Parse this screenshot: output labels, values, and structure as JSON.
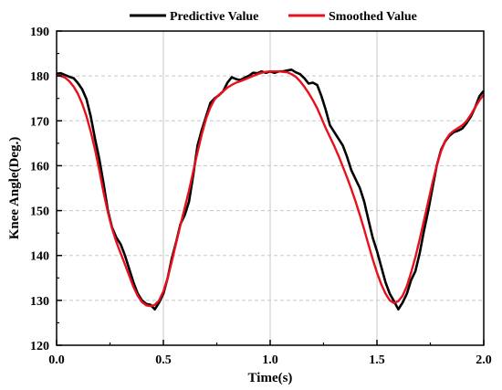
{
  "chart_data": {
    "type": "line",
    "title": "",
    "xlabel": "Time(s)",
    "ylabel": "Knee Angle(Deg.)",
    "xlim": [
      0,
      2.0
    ],
    "ylim": [
      120,
      190
    ],
    "xticks": [
      "0.0",
      "0.5",
      "1.0",
      "1.5",
      "2.0"
    ],
    "yticks": [
      "120",
      "130",
      "140",
      "150",
      "160",
      "170",
      "180",
      "190"
    ],
    "grid": true,
    "legend_position": "top",
    "series": [
      {
        "name": "Predictive Value",
        "color": "#000000",
        "x": [
          0.0,
          0.02,
          0.04,
          0.06,
          0.08,
          0.1,
          0.12,
          0.14,
          0.16,
          0.18,
          0.2,
          0.22,
          0.24,
          0.26,
          0.28,
          0.3,
          0.32,
          0.34,
          0.36,
          0.38,
          0.4,
          0.42,
          0.44,
          0.46,
          0.48,
          0.5,
          0.52,
          0.54,
          0.56,
          0.58,
          0.6,
          0.62,
          0.64,
          0.66,
          0.68,
          0.7,
          0.72,
          0.74,
          0.76,
          0.78,
          0.8,
          0.82,
          0.84,
          0.86,
          0.88,
          0.9,
          0.92,
          0.94,
          0.96,
          0.98,
          1.0,
          1.02,
          1.04,
          1.06,
          1.08,
          1.1,
          1.12,
          1.14,
          1.16,
          1.18,
          1.2,
          1.22,
          1.24,
          1.26,
          1.28,
          1.3,
          1.32,
          1.34,
          1.36,
          1.38,
          1.4,
          1.42,
          1.44,
          1.46,
          1.48,
          1.5,
          1.52,
          1.54,
          1.56,
          1.58,
          1.6,
          1.62,
          1.64,
          1.66,
          1.68,
          1.7,
          1.72,
          1.74,
          1.76,
          1.78,
          1.8,
          1.82,
          1.84,
          1.86,
          1.88,
          1.9,
          1.92,
          1.94,
          1.96,
          1.98,
          2.0
        ],
        "values": [
          180.5,
          180.6,
          180.2,
          179.8,
          179.5,
          178.4,
          177.0,
          174.8,
          171.0,
          166.0,
          161.5,
          156.0,
          150.0,
          146.2,
          144.0,
          142.5,
          140.0,
          137.0,
          134.0,
          131.5,
          130.0,
          129.2,
          129.0,
          128.0,
          129.5,
          131.5,
          135.0,
          139.5,
          143.0,
          147.0,
          149.0,
          152.0,
          158.0,
          164.5,
          168.0,
          171.0,
          174.0,
          175.0,
          175.7,
          176.6,
          178.5,
          179.7,
          179.3,
          179.1,
          179.6,
          180.0,
          180.7,
          180.6,
          181.0,
          180.7,
          181.0,
          180.7,
          181.0,
          181.0,
          181.2,
          181.4,
          180.8,
          180.4,
          179.5,
          178.3,
          178.5,
          178.0,
          175.5,
          172.5,
          169.0,
          167.5,
          166.0,
          164.5,
          162.0,
          159.0,
          157.0,
          155.0,
          152.0,
          148.0,
          144.0,
          141.0,
          137.5,
          134.0,
          131.5,
          129.8,
          128.0,
          129.5,
          131.5,
          134.5,
          136.5,
          140.5,
          145.5,
          150.0,
          155.0,
          160.0,
          163.5,
          165.5,
          166.7,
          167.5,
          167.8,
          168.3,
          169.5,
          171.0,
          173.0,
          175.5,
          176.7
        ]
      },
      {
        "name": "Smoothed Value",
        "color": "#e8101c",
        "x": [
          0.0,
          0.02,
          0.04,
          0.06,
          0.08,
          0.1,
          0.12,
          0.14,
          0.16,
          0.18,
          0.2,
          0.22,
          0.24,
          0.26,
          0.28,
          0.3,
          0.32,
          0.34,
          0.36,
          0.38,
          0.4,
          0.42,
          0.44,
          0.46,
          0.48,
          0.5,
          0.52,
          0.54,
          0.56,
          0.58,
          0.6,
          0.62,
          0.64,
          0.66,
          0.68,
          0.7,
          0.72,
          0.74,
          0.76,
          0.78,
          0.8,
          0.82,
          0.84,
          0.86,
          0.88,
          0.9,
          0.92,
          0.94,
          0.96,
          0.98,
          1.0,
          1.02,
          1.04,
          1.06,
          1.08,
          1.1,
          1.12,
          1.14,
          1.16,
          1.18,
          1.2,
          1.22,
          1.24,
          1.26,
          1.28,
          1.3,
          1.32,
          1.34,
          1.36,
          1.38,
          1.4,
          1.42,
          1.44,
          1.46,
          1.48,
          1.5,
          1.52,
          1.54,
          1.56,
          1.58,
          1.6,
          1.62,
          1.64,
          1.66,
          1.68,
          1.7,
          1.72,
          1.74,
          1.76,
          1.78,
          1.8,
          1.82,
          1.84,
          1.86,
          1.88,
          1.9,
          1.92,
          1.94,
          1.96,
          1.98,
          2.0
        ],
        "values": [
          180.2,
          180.0,
          179.6,
          178.8,
          177.6,
          176.0,
          173.8,
          171.0,
          167.6,
          163.6,
          159.0,
          154.0,
          149.6,
          146.0,
          143.0,
          140.5,
          138.0,
          135.5,
          133.0,
          131.0,
          129.6,
          128.9,
          128.7,
          129.0,
          130.0,
          132.0,
          135.0,
          138.8,
          142.8,
          146.8,
          150.6,
          154.5,
          158.8,
          163.0,
          167.0,
          170.5,
          173.0,
          174.8,
          175.8,
          176.6,
          177.4,
          178.0,
          178.5,
          178.8,
          179.2,
          179.6,
          180.0,
          180.4,
          180.7,
          180.9,
          181.0,
          181.0,
          181.0,
          180.9,
          180.8,
          180.4,
          179.8,
          178.8,
          177.6,
          176.2,
          174.6,
          172.8,
          170.6,
          168.4,
          166.4,
          164.4,
          162.2,
          159.8,
          157.4,
          154.8,
          152.0,
          149.0,
          145.8,
          142.5,
          139.2,
          136.2,
          133.6,
          131.5,
          130.0,
          129.4,
          129.8,
          131.0,
          133.2,
          136.2,
          139.6,
          143.6,
          147.8,
          152.0,
          156.2,
          160.0,
          163.2,
          165.6,
          167.0,
          167.8,
          168.4,
          169.0,
          170.0,
          171.4,
          173.0,
          174.6,
          175.8
        ]
      }
    ]
  }
}
